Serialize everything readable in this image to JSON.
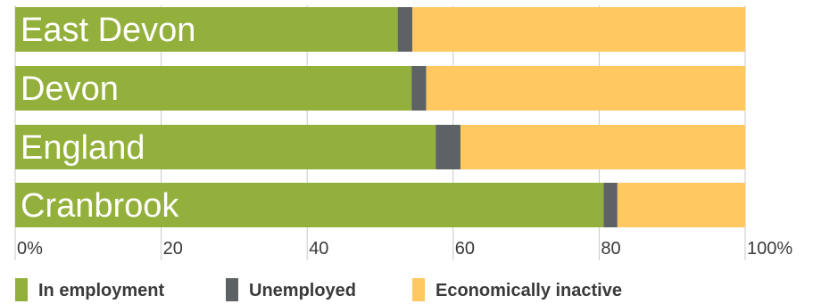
{
  "chart_data": {
    "type": "bar",
    "orientation": "horizontal",
    "stacked": true,
    "categories": [
      "East Devon",
      "Devon",
      "England",
      "Cranbrook"
    ],
    "series": [
      {
        "name": "In employment",
        "color": "#94b03c",
        "values": [
          52.4,
          54.3,
          57.6,
          80.6
        ]
      },
      {
        "name": "Unemployed",
        "color": "#5d6365",
        "values": [
          2.0,
          2.0,
          3.4,
          1.9
        ]
      },
      {
        "name": "Economically inactive",
        "color": "#ffc861",
        "values": [
          45.6,
          43.7,
          39.0,
          17.5
        ]
      }
    ],
    "xlim": [
      0,
      100
    ],
    "xticks": [
      "0%",
      "20",
      "40",
      "60",
      "80",
      "100%"
    ],
    "gridlines": "vertical",
    "legend": "bottom"
  }
}
